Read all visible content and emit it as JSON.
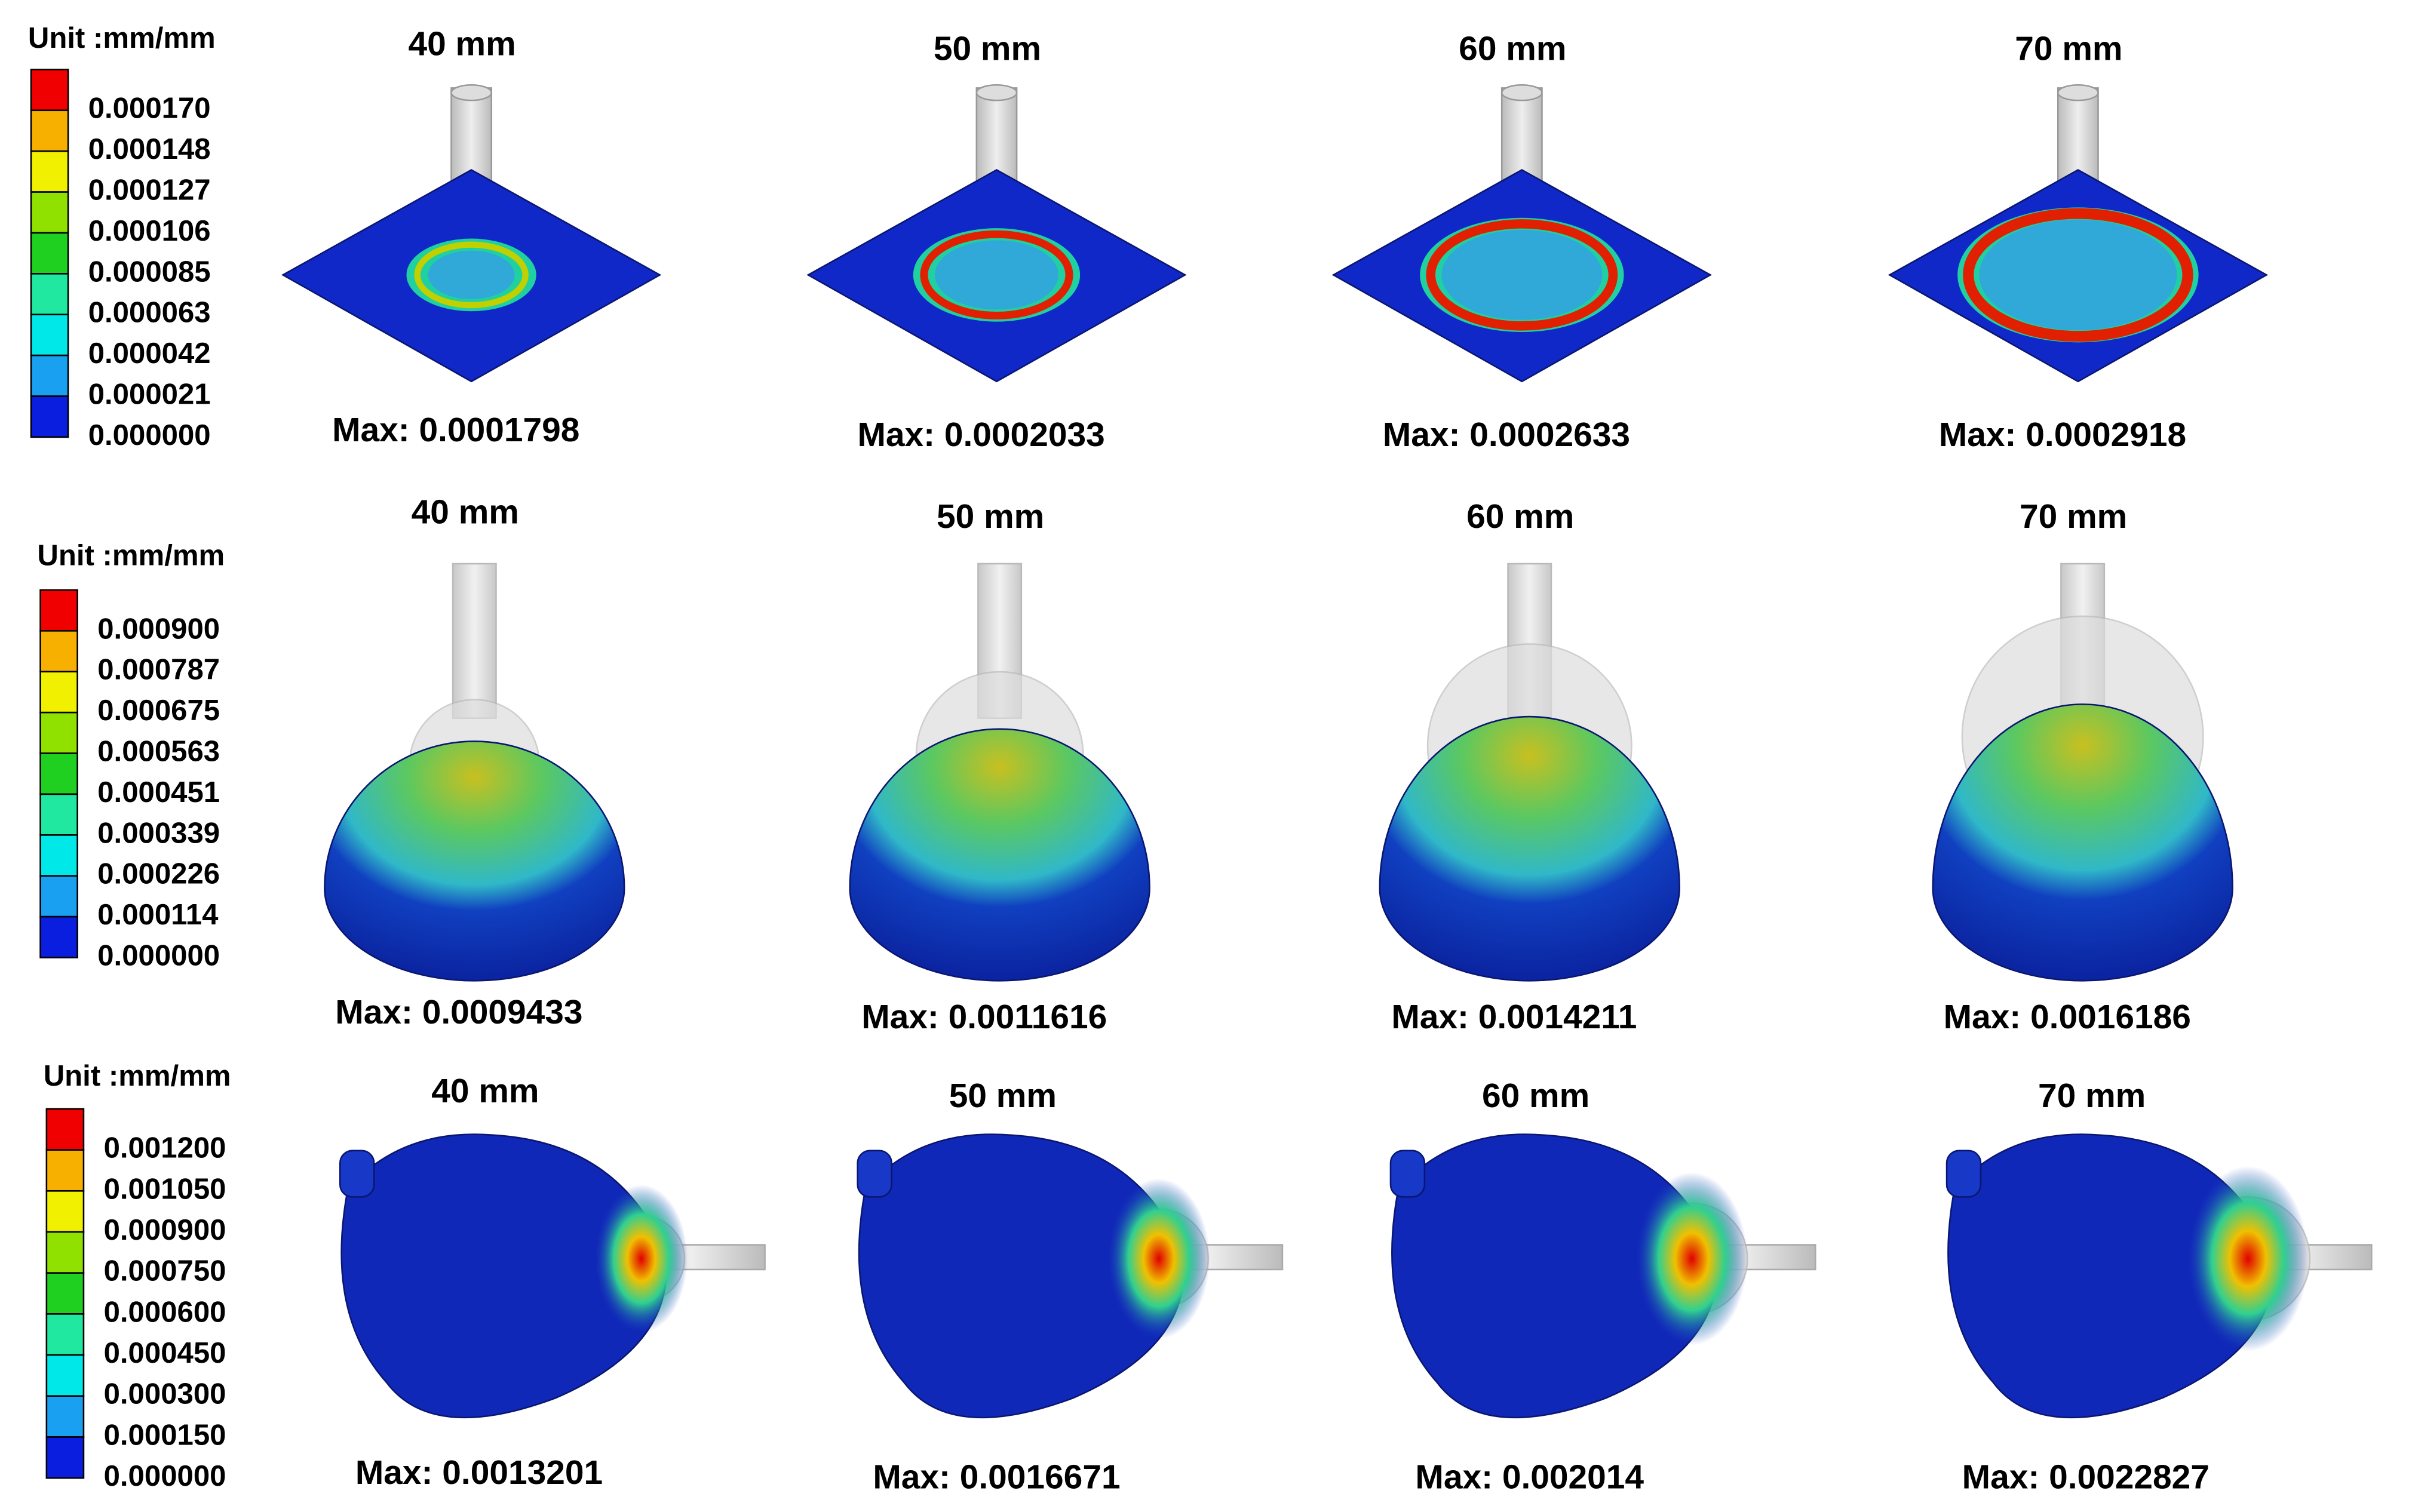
{
  "rows": [
    {
      "legend": {
        "unit": "Unit :mm/mm",
        "labels": [
          "0.000170",
          "0.000148",
          "0.000127",
          "0.000106",
          "0.000085",
          "0.000063",
          "0.000042",
          "0.000021",
          "0.000000"
        ]
      },
      "panels": [
        {
          "title": "40 mm",
          "max": "Max: 0.0001798"
        },
        {
          "title": "50 mm",
          "max": "Max: 0.0002033"
        },
        {
          "title": "60 mm",
          "max": "Max: 0.0002633"
        },
        {
          "title": "70 mm",
          "max": "Max: 0.0002918"
        }
      ]
    },
    {
      "legend": {
        "unit": "Unit :mm/mm",
        "labels": [
          "0.000900",
          "0.000787",
          "0.000675",
          "0.000563",
          "0.000451",
          "0.000339",
          "0.000226",
          "0.000114",
          "0.000000"
        ]
      },
      "panels": [
        {
          "title": "40 mm",
          "max": "Max: 0.0009433"
        },
        {
          "title": "50 mm",
          "max": "Max: 0.0011616"
        },
        {
          "title": "60 mm",
          "max": "Max: 0.0014211"
        },
        {
          "title": "70 mm",
          "max": "Max: 0.0016186"
        }
      ]
    },
    {
      "legend": {
        "unit": "Unit :mm/mm",
        "labels": [
          "0.001200",
          "0.001050",
          "0.000900",
          "0.000750",
          "0.000600",
          "0.000450",
          "0.000300",
          "0.000150",
          "0.000000"
        ]
      },
      "panels": [
        {
          "title": "40 mm",
          "max": "Max: 0.0013201"
        },
        {
          "title": "50 mm",
          "max": "Max: 0.0016671"
        },
        {
          "title": "60 mm",
          "max": "Max: 0.002014"
        },
        {
          "title": "70 mm",
          "max": "Max: 0.0022827"
        }
      ]
    }
  ]
}
